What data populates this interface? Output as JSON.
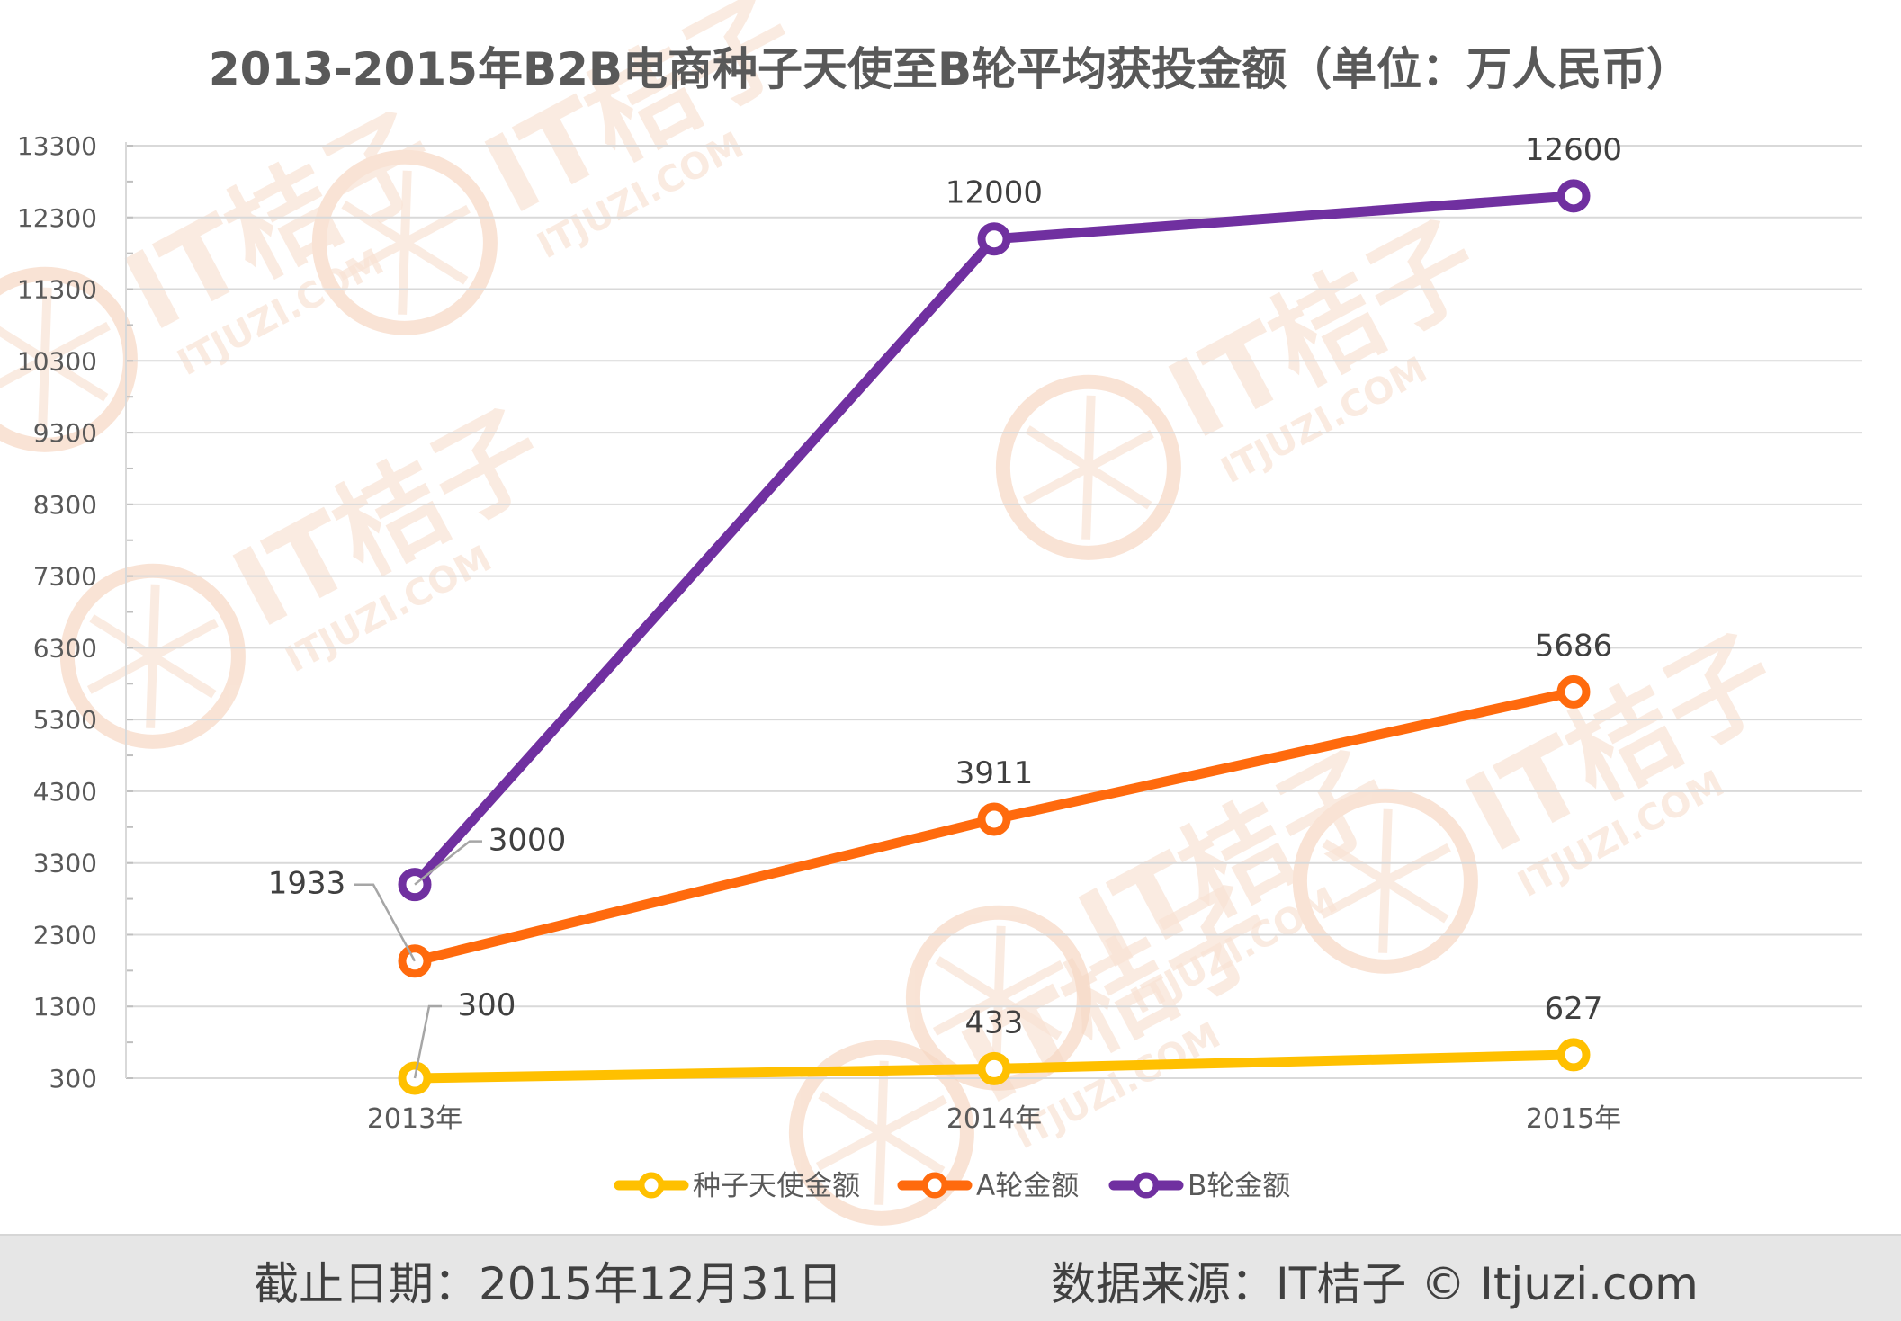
{
  "chart_data": {
    "type": "line",
    "title": "2013-2015年B2B电商种子天使至B轮平均获投金额（单位：万人民币）",
    "categories": [
      "2013年",
      "2014年",
      "2015年"
    ],
    "yticks": [
      300,
      1300,
      2300,
      3300,
      4300,
      5300,
      6300,
      7300,
      8300,
      9300,
      10300,
      11300,
      12300,
      13300
    ],
    "ylim": [
      300,
      13300
    ],
    "grid": true,
    "legend_position": "bottom",
    "series": [
      {
        "name": "种子天使金额",
        "color": "#FFC000",
        "values": [
          300,
          433,
          627
        ],
        "labels": [
          "300",
          "433",
          "627"
        ]
      },
      {
        "name": "A轮金额",
        "color": "#FF6A0D",
        "values": [
          1933,
          3911,
          5686
        ],
        "labels": [
          "1933",
          "3911",
          "5686"
        ]
      },
      {
        "name": "B轮金额",
        "color": "#7030A0",
        "values": [
          3000,
          12000,
          12600
        ],
        "labels": [
          "3000",
          "12000",
          "12600"
        ]
      }
    ]
  },
  "footer": {
    "cutoff": "截止日期：2015年12月31日",
    "source": "数据来源：IT桔子 © Itjuzi.com"
  },
  "watermark": {
    "brand": "IT桔子",
    "url": "ITJUZI.COM"
  }
}
